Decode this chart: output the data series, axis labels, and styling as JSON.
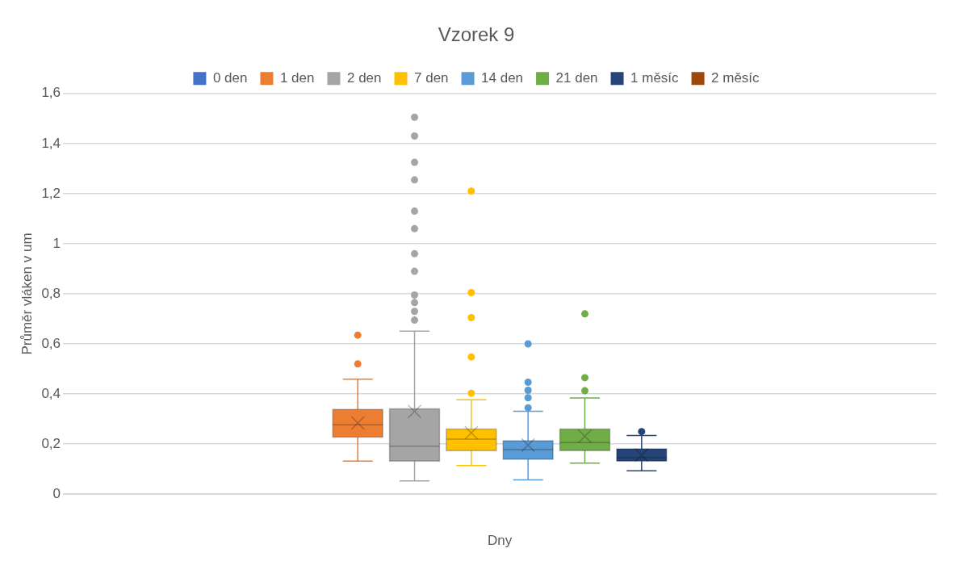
{
  "chart_data": {
    "type": "box",
    "title": "Vzorek 9",
    "xlabel": "Dny",
    "ylabel": "Průměr vláken v um",
    "categories": [
      null
    ],
    "ylim": [
      0,
      1.6
    ],
    "yticks": [
      0,
      {
        "value": 0.2,
        "label": "0,2"
      },
      {
        "value": 0.4,
        "label": "0,4"
      },
      {
        "value": 0.6,
        "label": "0,6"
      },
      {
        "value": 0.8,
        "label": "0,8"
      },
      1,
      {
        "value": 1.2,
        "label": "1,2"
      },
      {
        "value": 1.4,
        "label": "1,4"
      },
      {
        "value": 1.6,
        "label": "1,6"
      }
    ],
    "grid": "y",
    "legend": "top",
    "marker": "circle",
    "series": [
      {
        "name": "0 den",
        "color": "#4472c4",
        "boxes": [
          null
        ]
      },
      {
        "name": "1 den",
        "color": "#ed7d31",
        "boxes": [
          {
            "low": 0.132,
            "q1": 0.228,
            "median": 0.277,
            "q3": 0.338,
            "high": 0.459,
            "mean": 0.284,
            "outliers": [
              0.52,
              0.635
            ]
          }
        ]
      },
      {
        "name": "2 den",
        "color": "#a5a5a5",
        "boxes": [
          {
            "low": 0.053,
            "q1": 0.132,
            "median": 0.192,
            "q3": 0.341,
            "high": 0.651,
            "mean": 0.33,
            "outliers": [
              0.695,
              0.73,
              0.765,
              0.795,
              0.89,
              0.96,
              1.06,
              1.13,
              1.255,
              1.325,
              1.43,
              1.505
            ]
          }
        ]
      },
      {
        "name": "7 den",
        "color": "#ffc000",
        "boxes": [
          {
            "low": 0.114,
            "q1": 0.174,
            "median": 0.22,
            "q3": 0.26,
            "high": 0.377,
            "mean": 0.245,
            "outliers": [
              0.403,
              0.548,
              0.705,
              0.805,
              1.21
            ]
          }
        ]
      },
      {
        "name": "14 den",
        "color": "#5b9bd5",
        "boxes": [
          {
            "low": 0.057,
            "q1": 0.139,
            "median": 0.178,
            "q3": 0.213,
            "high": 0.331,
            "mean": 0.196,
            "outliers": [
              0.345,
              0.385,
              0.415,
              0.447,
              0.6
            ]
          }
        ]
      },
      {
        "name": "21 den",
        "color": "#70ad47",
        "boxes": [
          {
            "low": 0.124,
            "q1": 0.174,
            "median": 0.206,
            "q3": 0.26,
            "high": 0.384,
            "mean": 0.231,
            "outliers": [
              0.413,
              0.465,
              0.72
            ]
          }
        ]
      },
      {
        "name": "1 měsíc",
        "color": "#264478",
        "boxes": [
          {
            "low": 0.093,
            "q1": 0.132,
            "median": 0.146,
            "q3": 0.181,
            "high": 0.234,
            "mean": 0.156,
            "outliers": [
              0.25
            ]
          }
        ]
      },
      {
        "name": "2 měsíc",
        "color": "#9e480e",
        "boxes": [
          null
        ]
      }
    ]
  }
}
